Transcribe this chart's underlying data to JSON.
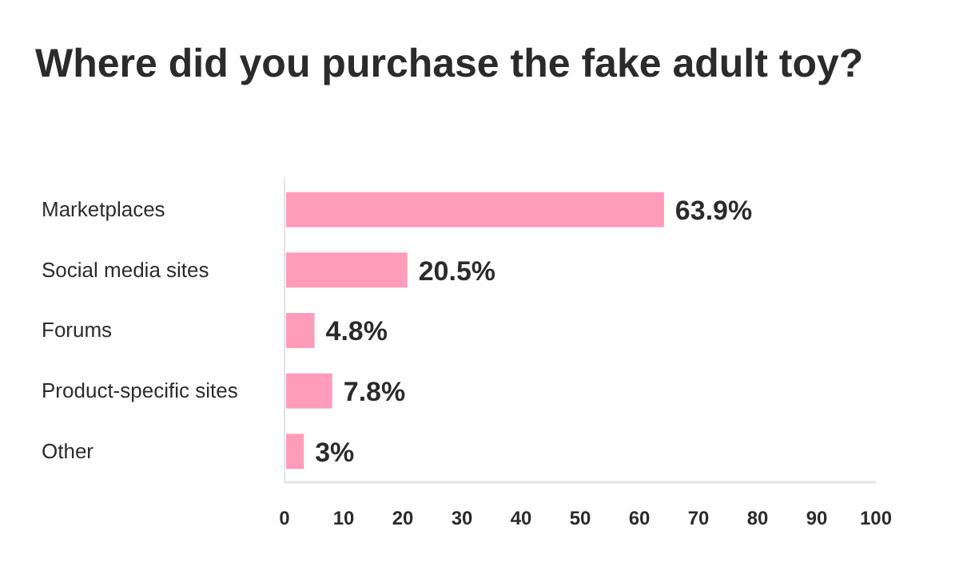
{
  "chart_data": {
    "type": "bar",
    "orientation": "horizontal",
    "title": "Where did you purchase the fake adult toy?",
    "categories": [
      "Marketplaces",
      "Social media sites",
      "Forums",
      "Product-specific sites",
      "Other"
    ],
    "values": [
      63.9,
      20.5,
      4.8,
      7.8,
      3
    ],
    "value_labels": [
      "63.9%",
      "20.5%",
      "4.8%",
      "7.8%",
      "3%"
    ],
    "color": "#ff9bbb",
    "xlim": [
      0,
      100
    ],
    "xticks": [
      0,
      10,
      20,
      30,
      40,
      50,
      60,
      70,
      80,
      90,
      100
    ],
    "grid": false
  }
}
